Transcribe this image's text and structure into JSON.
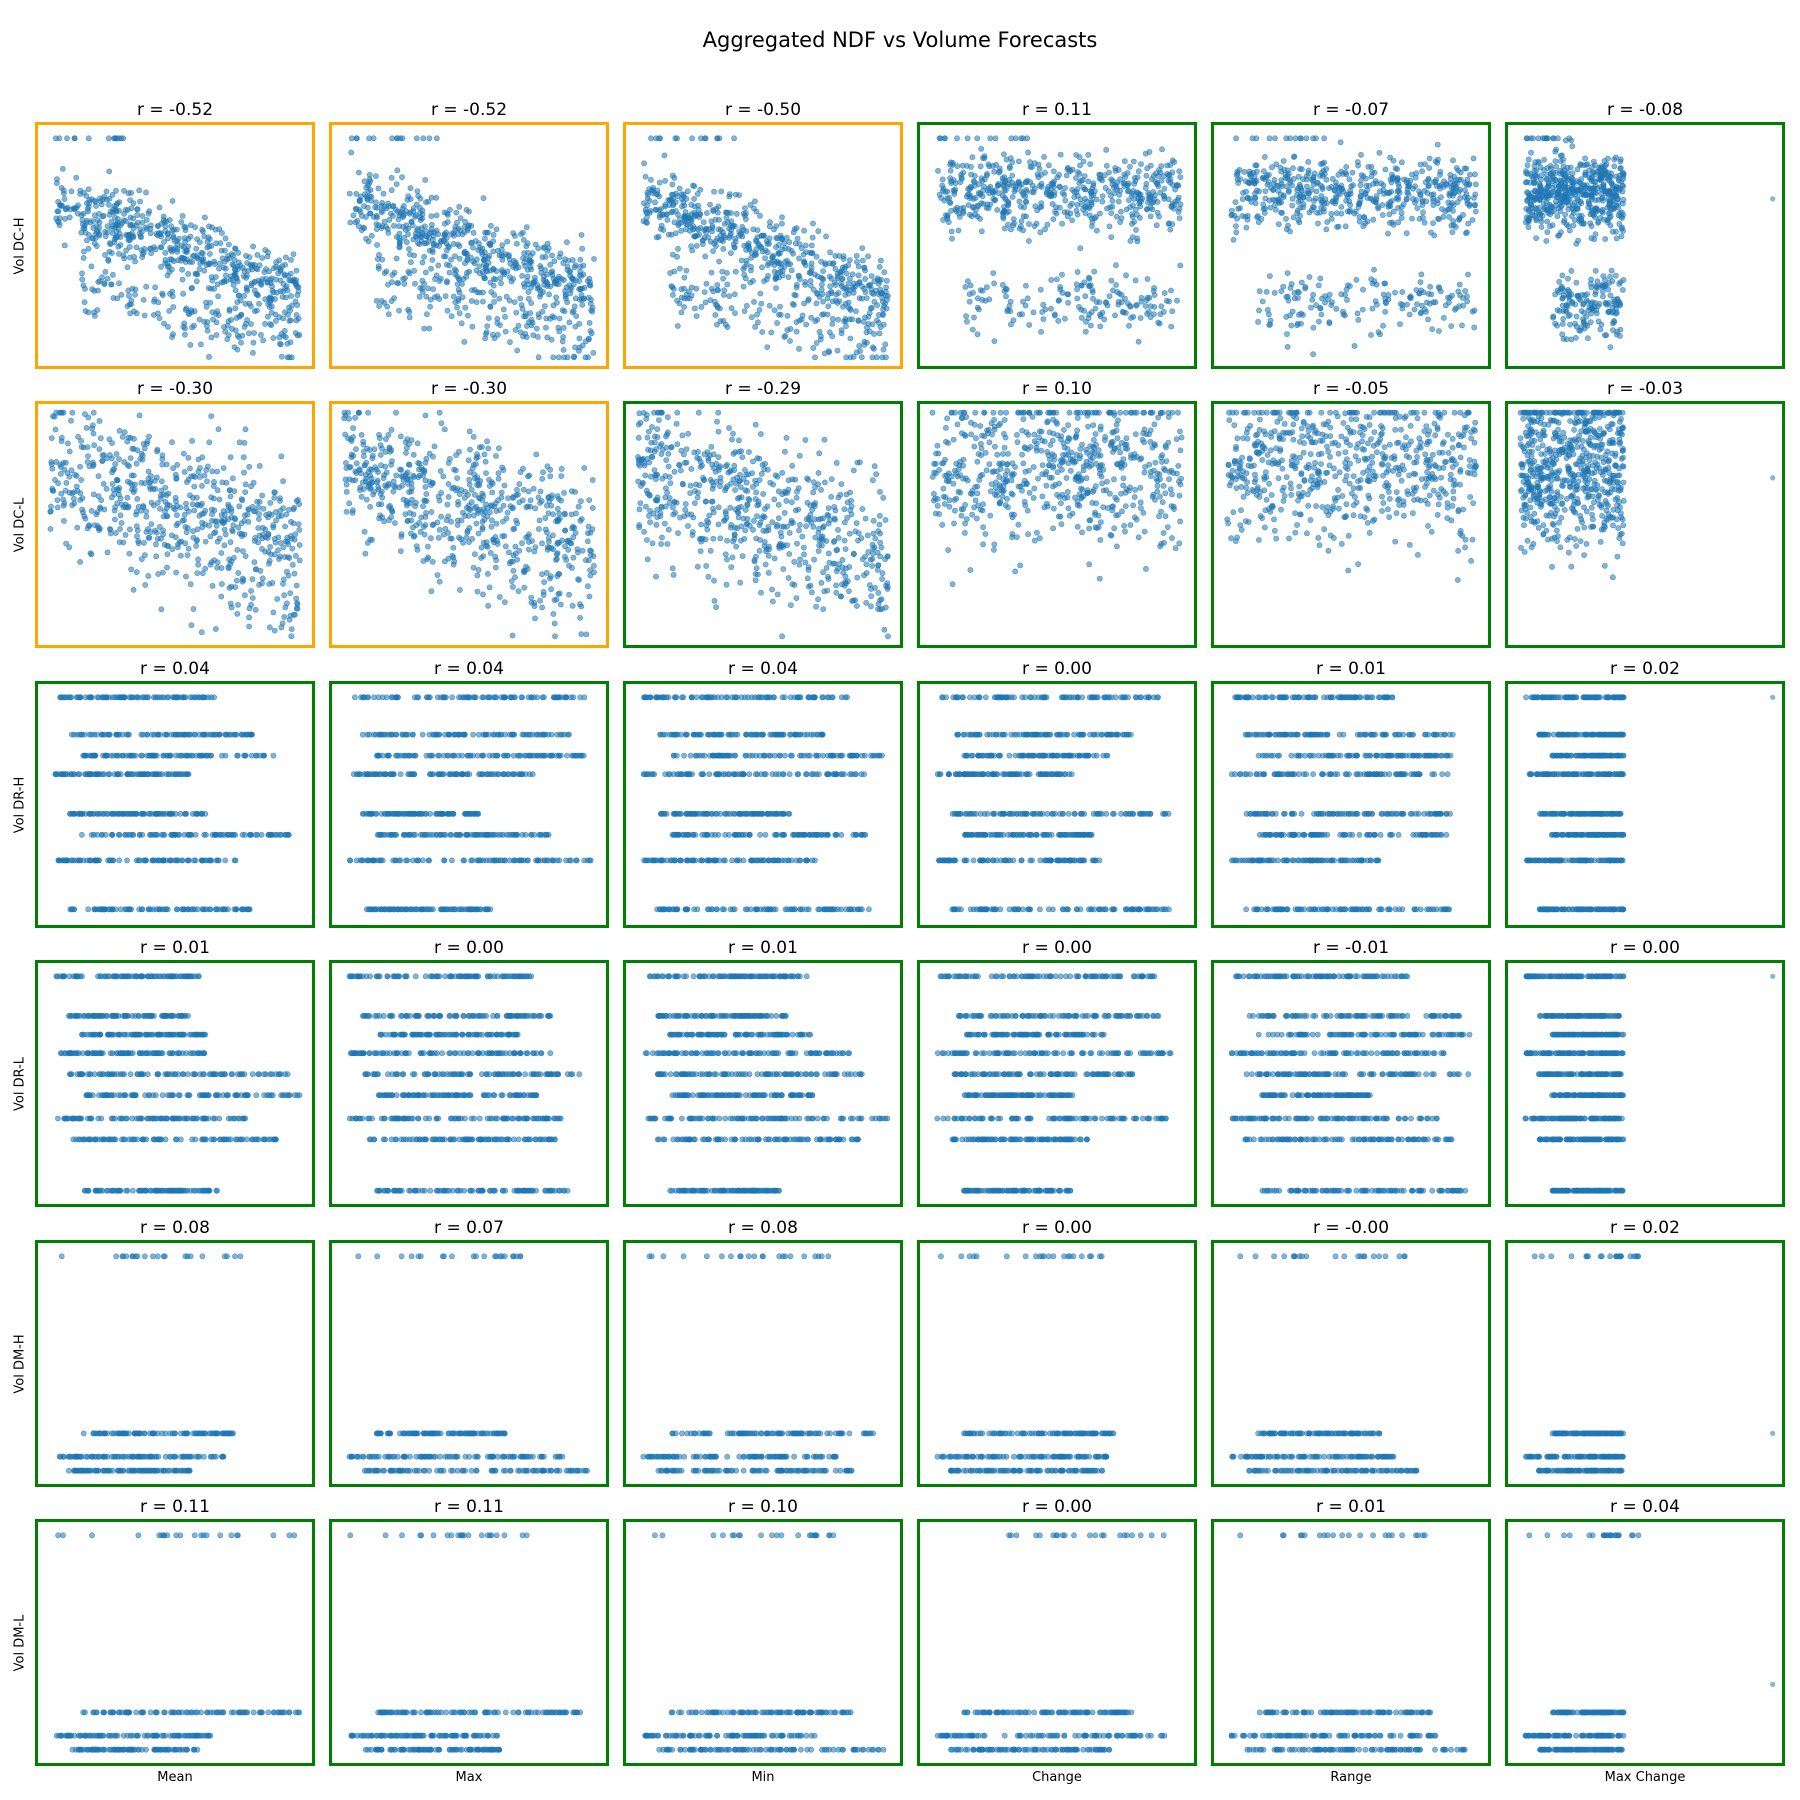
{
  "chart_data": {
    "type": "scatter",
    "title": "Aggregated NDF vs Volume Forecasts",
    "column_labels": [
      "Mean",
      "Max",
      "Min",
      "Change",
      "Range",
      "Max Change"
    ],
    "row_labels": [
      "Vol DC-H",
      "Vol DC-L",
      "Vol DR-H",
      "Vol DR-L",
      "Vol DM-H",
      "Vol DM-L"
    ],
    "correlations": [
      [
        "r = -0.52",
        "r = -0.52",
        "r = -0.50",
        "r = 0.11",
        "r = -0.07",
        "r = -0.08"
      ],
      [
        "r = -0.30",
        "r = -0.30",
        "r = -0.29",
        "r = 0.10",
        "r = -0.05",
        "r = -0.03"
      ],
      [
        "r = 0.04",
        "r = 0.04",
        "r = 0.04",
        "r = 0.00",
        "r = 0.01",
        "r = 0.02"
      ],
      [
        "r = 0.01",
        "r = 0.00",
        "r = 0.01",
        "r = 0.00",
        "r = -0.01",
        "r = 0.00"
      ],
      [
        "r = 0.08",
        "r = 0.07",
        "r = 0.08",
        "r = 0.00",
        "r = -0.00",
        "r = 0.02"
      ],
      [
        "r = 0.11",
        "r = 0.11",
        "r = 0.10",
        "r = 0.00",
        "r = 0.01",
        "r = 0.04"
      ]
    ],
    "r_values": [
      [
        -0.52,
        -0.52,
        -0.5,
        0.11,
        -0.07,
        -0.08
      ],
      [
        -0.3,
        -0.3,
        -0.29,
        0.1,
        -0.05,
        -0.03
      ],
      [
        0.04,
        0.04,
        0.04,
        0.0,
        0.01,
        0.02
      ],
      [
        0.01,
        0.0,
        0.01,
        0.0,
        -0.01,
        0.0
      ],
      [
        0.08,
        0.07,
        0.08,
        0.0,
        -0.0,
        0.02
      ],
      [
        0.11,
        0.11,
        0.1,
        0.0,
        0.01,
        0.04
      ]
    ],
    "highlight": [
      [
        "orange",
        "orange",
        "orange",
        "green",
        "green",
        "green"
      ],
      [
        "orange",
        "orange",
        "green",
        "green",
        "green",
        "green"
      ],
      [
        "green",
        "green",
        "green",
        "green",
        "green",
        "green"
      ],
      [
        "green",
        "green",
        "green",
        "green",
        "green",
        "green"
      ],
      [
        "green",
        "green",
        "green",
        "green",
        "green",
        "green"
      ],
      [
        "green",
        "green",
        "green",
        "green",
        "green",
        "green"
      ]
    ],
    "grid": false,
    "axes_ticks": false,
    "point_color": "#1f77b4",
    "border_colors": {
      "orange": "#ffa500",
      "green": "#008000"
    }
  }
}
